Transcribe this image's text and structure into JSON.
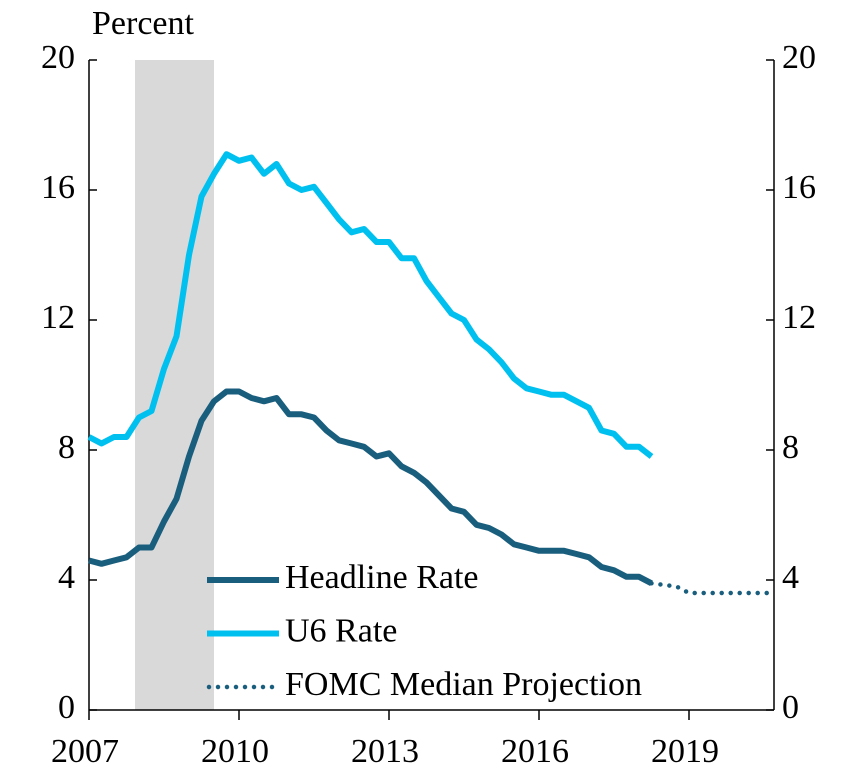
{
  "chart_data": {
    "type": "line",
    "y_label": "Percent",
    "xlim": [
      2007,
      2020.7
    ],
    "xticks": [
      2007,
      2010,
      2013,
      2016,
      2019
    ],
    "ylim": [
      0,
      20
    ],
    "yticks": [
      0,
      4,
      8,
      12,
      16,
      20
    ],
    "y2lim": [
      0,
      20
    ],
    "y2ticks": [
      0,
      4,
      8,
      12,
      16,
      20
    ],
    "recession": [
      2007.92,
      2009.5
    ],
    "recession_color": "#d9d9d9",
    "legend": "bottom-left",
    "series": [
      {
        "name": "Headline Rate",
        "color": "#1a5e7e",
        "style": "solid",
        "x": [
          2007.0,
          2007.25,
          2007.5,
          2007.75,
          2008.0,
          2008.25,
          2008.5,
          2008.75,
          2009.0,
          2009.25,
          2009.5,
          2009.75,
          2010.0,
          2010.25,
          2010.5,
          2010.75,
          2011.0,
          2011.25,
          2011.5,
          2011.75,
          2012.0,
          2012.25,
          2012.5,
          2012.75,
          2013.0,
          2013.25,
          2013.5,
          2013.75,
          2014.0,
          2014.25,
          2014.5,
          2014.75,
          2015.0,
          2015.25,
          2015.5,
          2015.75,
          2016.0,
          2016.25,
          2016.5,
          2016.75,
          2017.0,
          2017.25,
          2017.5,
          2017.75,
          2018.0,
          2018.25
        ],
        "values": [
          4.6,
          4.5,
          4.6,
          4.7,
          5.0,
          5.0,
          5.8,
          6.5,
          7.8,
          8.9,
          9.5,
          9.8,
          9.8,
          9.6,
          9.5,
          9.6,
          9.1,
          9.1,
          9.0,
          8.6,
          8.3,
          8.2,
          8.1,
          7.8,
          7.9,
          7.5,
          7.3,
          7.0,
          6.6,
          6.2,
          6.1,
          5.7,
          5.6,
          5.4,
          5.1,
          5.0,
          4.9,
          4.9,
          4.9,
          4.8,
          4.7,
          4.4,
          4.3,
          4.1,
          4.1,
          3.9
        ]
      },
      {
        "name": "U6 Rate",
        "color": "#00c0f0",
        "style": "solid",
        "x": [
          2007.0,
          2007.25,
          2007.5,
          2007.75,
          2008.0,
          2008.25,
          2008.5,
          2008.75,
          2009.0,
          2009.25,
          2009.5,
          2009.75,
          2010.0,
          2010.25,
          2010.5,
          2010.75,
          2011.0,
          2011.25,
          2011.5,
          2011.75,
          2012.0,
          2012.25,
          2012.5,
          2012.75,
          2013.0,
          2013.25,
          2013.5,
          2013.75,
          2014.0,
          2014.25,
          2014.5,
          2014.75,
          2015.0,
          2015.25,
          2015.5,
          2015.75,
          2016.0,
          2016.25,
          2016.5,
          2016.75,
          2017.0,
          2017.25,
          2017.5,
          2017.75,
          2018.0,
          2018.25
        ],
        "values": [
          8.4,
          8.2,
          8.4,
          8.4,
          9.0,
          9.2,
          10.5,
          11.5,
          14.0,
          15.8,
          16.5,
          17.1,
          16.9,
          17.0,
          16.5,
          16.8,
          16.2,
          16.0,
          16.1,
          15.6,
          15.1,
          14.7,
          14.8,
          14.4,
          14.4,
          13.9,
          13.9,
          13.2,
          12.7,
          12.2,
          12.0,
          11.4,
          11.1,
          10.7,
          10.2,
          9.9,
          9.8,
          9.7,
          9.7,
          9.5,
          9.3,
          8.6,
          8.5,
          8.1,
          8.1,
          7.8
        ]
      },
      {
        "name": "FOMC Median Projection",
        "color": "#1a5e7e",
        "style": "dotted",
        "x": [
          2018.25,
          2018.75,
          2019.0,
          2020.0,
          2020.7
        ],
        "values": [
          3.9,
          3.8,
          3.6,
          3.6,
          3.6
        ]
      }
    ]
  }
}
